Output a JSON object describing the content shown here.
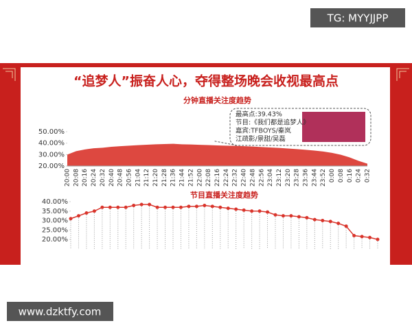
{
  "watermark_top": "TG: MYYJJPP",
  "watermark_bottom": "www.dzktfy.com",
  "slide_title": "“追梦人”振奋人心，夺得整场晚会收视最高点",
  "chart_data": [
    {
      "type": "area",
      "title": "分钟直播关注度趋势",
      "color": "#d9342b",
      "categories": [
        "20:00",
        "20:08",
        "20:16",
        "20:24",
        "20:32",
        "20:40",
        "20:48",
        "20:56",
        "21:04",
        "21:12",
        "21:20",
        "21:28",
        "21:36",
        "21:44",
        "21:52",
        "22:00",
        "22:08",
        "22:16",
        "22:24",
        "22:32",
        "22:40",
        "22:48",
        "22:56",
        "23:04",
        "23:12",
        "23:20",
        "23:28",
        "23:36",
        "23:44",
        "23:52",
        "0:00",
        "0:08",
        "0:16",
        "0:24",
        "0:32"
      ],
      "values": [
        30,
        33,
        34.5,
        35.5,
        36,
        36.8,
        37.3,
        37.8,
        38.2,
        38.6,
        39,
        39.2,
        39.4,
        39,
        38.8,
        38.5,
        38.3,
        38,
        37.8,
        37.6,
        37.3,
        37,
        36.6,
        36.2,
        35.8,
        35.3,
        34.8,
        34.2,
        33.5,
        32.7,
        31.5,
        29.8,
        27.5,
        24.5,
        22
      ],
      "ylim": [
        20,
        50
      ],
      "yticks": [
        {
          "value": 20,
          "label": "20.00%"
        },
        {
          "value": 30,
          "label": "30.00%"
        },
        {
          "value": 40,
          "label": "40.00%"
        },
        {
          "value": 50,
          "label": "50.00%"
        }
      ],
      "annotation": [
        "最高点:39.43%",
        "节目:《我们都是追梦人》",
        "嘉宾:TFBOYS/秦岚",
        "江疏影/景甜/吴磊"
      ]
    },
    {
      "type": "line",
      "title": "节目直播关注度趋势",
      "color": "#d9342b",
      "categories": [
        null,
        null,
        null,
        null,
        null,
        null,
        null,
        null,
        null,
        null,
        null,
        null,
        null,
        null,
        null,
        null,
        null,
        null,
        null,
        null,
        null,
        null,
        null,
        null,
        null,
        null,
        null,
        null,
        null,
        null,
        null,
        null,
        null,
        null,
        null,
        null,
        null,
        null,
        null,
        null
      ],
      "values": [
        31,
        32.5,
        34,
        35,
        37,
        37,
        37,
        37,
        38,
        38.5,
        38.5,
        37,
        37,
        37,
        37,
        37.5,
        37.5,
        38,
        37.5,
        37,
        36.5,
        36,
        35.5,
        35,
        35,
        34.5,
        33,
        32.5,
        32.5,
        32,
        31.5,
        30.5,
        30,
        29.5,
        28.5,
        27,
        22,
        21.5,
        21,
        20
      ],
      "ylim": [
        20,
        40
      ],
      "yticks": [
        {
          "value": 20,
          "label": "20.00%"
        },
        {
          "value": 25,
          "label": "25.00%"
        },
        {
          "value": 30,
          "label": "30.00%"
        },
        {
          "value": 35,
          "label": "35.00%"
        },
        {
          "value": 40,
          "label": "40.00%"
        }
      ]
    }
  ]
}
